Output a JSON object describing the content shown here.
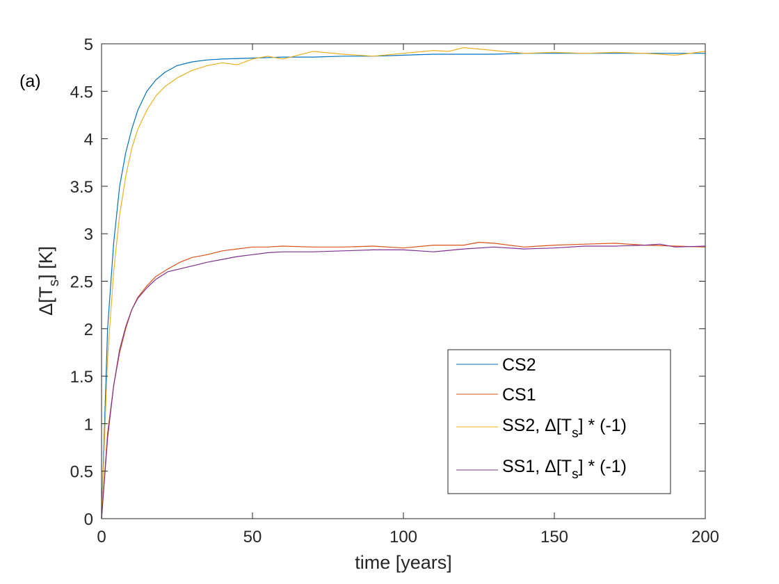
{
  "panel_label": "(a)",
  "chart_data": {
    "type": "line",
    "title": "",
    "xlabel": "time [years]",
    "ylabel_main": "Δ[T",
    "ylabel_sub": "s",
    "ylabel_tail": "] [K]",
    "xlim": [
      0,
      200
    ],
    "ylim": [
      0,
      5
    ],
    "xticks": [
      0,
      50,
      100,
      150,
      200
    ],
    "xtick_labels": [
      "0",
      "50",
      "100",
      "150",
      "200"
    ],
    "yticks": [
      0,
      0.5,
      1,
      1.5,
      2,
      2.5,
      3,
      3.5,
      4,
      4.5,
      5
    ],
    "ytick_labels": [
      "0",
      "0.5",
      "1",
      "1.5",
      "2",
      "2.5",
      "3",
      "3.5",
      "4",
      "4.5",
      "5"
    ],
    "grid": false,
    "legend_position": "bottom-right",
    "series": [
      {
        "name": "CS2",
        "legend_text": "CS2",
        "color": "#0072BD",
        "x": [
          0,
          2,
          4,
          6,
          8,
          10,
          12,
          15,
          18,
          21,
          25,
          30,
          35,
          40,
          50,
          60,
          70,
          80,
          90,
          100,
          110,
          120,
          130,
          140,
          150,
          160,
          170,
          180,
          190,
          200
        ],
        "y": [
          0,
          2.0,
          2.9,
          3.5,
          3.85,
          4.1,
          4.3,
          4.5,
          4.62,
          4.7,
          4.77,
          4.81,
          4.83,
          4.84,
          4.85,
          4.86,
          4.86,
          4.87,
          4.87,
          4.88,
          4.89,
          4.89,
          4.89,
          4.9,
          4.9,
          4.9,
          4.9,
          4.9,
          4.9,
          4.9
        ]
      },
      {
        "name": "CS1",
        "legend_text": "CS1",
        "color": "#D95319",
        "x": [
          0,
          2,
          4,
          6,
          8,
          10,
          12,
          15,
          18,
          22,
          26,
          30,
          35,
          40,
          45,
          50,
          55,
          60,
          70,
          80,
          90,
          100,
          110,
          120,
          125,
          130,
          140,
          150,
          160,
          170,
          180,
          190,
          200
        ],
        "y": [
          0,
          0.9,
          1.4,
          1.75,
          2.0,
          2.2,
          2.33,
          2.45,
          2.55,
          2.63,
          2.7,
          2.75,
          2.78,
          2.82,
          2.84,
          2.86,
          2.86,
          2.87,
          2.86,
          2.86,
          2.87,
          2.85,
          2.88,
          2.88,
          2.91,
          2.9,
          2.86,
          2.88,
          2.89,
          2.9,
          2.88,
          2.87,
          2.86
        ]
      },
      {
        "name": "SS2",
        "legend_main": "SS2, Δ[T",
        "legend_sub": "s",
        "legend_tail": "] * (-1)",
        "color": "#EDB120",
        "x": [
          0,
          2,
          4,
          6,
          8,
          10,
          12,
          15,
          18,
          21,
          25,
          30,
          35,
          40,
          45,
          50,
          55,
          60,
          65,
          70,
          80,
          90,
          100,
          110,
          115,
          120,
          130,
          140,
          150,
          160,
          170,
          180,
          190,
          200
        ],
        "y": [
          0,
          1.7,
          2.6,
          3.2,
          3.6,
          3.9,
          4.1,
          4.3,
          4.45,
          4.55,
          4.64,
          4.72,
          4.77,
          4.8,
          4.78,
          4.84,
          4.87,
          4.84,
          4.88,
          4.92,
          4.89,
          4.87,
          4.9,
          4.93,
          4.92,
          4.96,
          4.93,
          4.9,
          4.91,
          4.9,
          4.91,
          4.9,
          4.88,
          4.92
        ]
      },
      {
        "name": "SS1",
        "legend_main": "SS1, Δ[T",
        "legend_sub": "s",
        "legend_tail": "] * (-1)",
        "color": "#7E2F8E",
        "x": [
          0,
          2,
          4,
          6,
          8,
          10,
          12,
          15,
          18,
          22,
          26,
          30,
          35,
          40,
          45,
          50,
          55,
          60,
          70,
          80,
          90,
          100,
          110,
          120,
          130,
          140,
          150,
          160,
          170,
          180,
          185,
          190,
          200
        ],
        "y": [
          0,
          0.85,
          1.4,
          1.78,
          2.02,
          2.2,
          2.32,
          2.43,
          2.52,
          2.6,
          2.63,
          2.66,
          2.7,
          2.73,
          2.76,
          2.78,
          2.8,
          2.81,
          2.81,
          2.82,
          2.83,
          2.83,
          2.81,
          2.84,
          2.86,
          2.84,
          2.85,
          2.87,
          2.87,
          2.88,
          2.89,
          2.86,
          2.87
        ]
      }
    ]
  }
}
